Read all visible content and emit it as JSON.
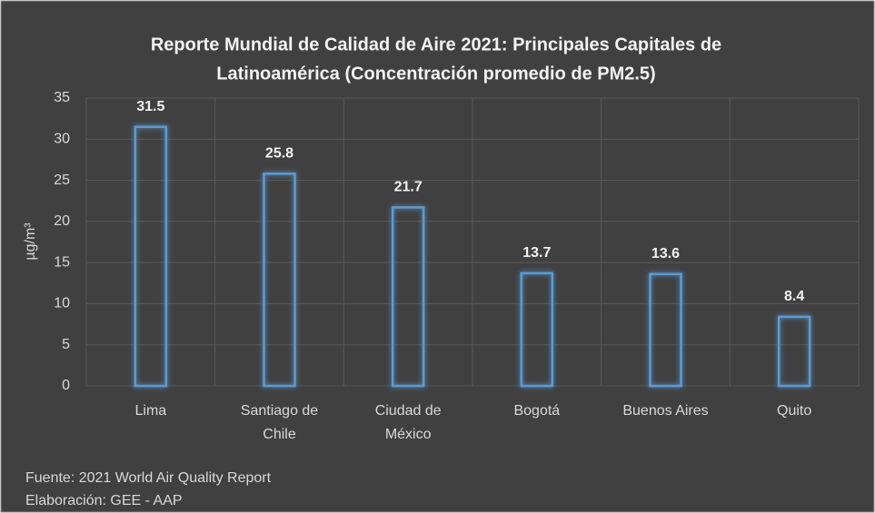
{
  "chart_data": {
    "type": "bar",
    "title": [
      "Reporte Mundial de Calidad de Aire 2021: Principales Capitales de",
      "Latinoamérica (Concentración promedio de PM2.5)"
    ],
    "ylabel": "µg/m³",
    "categories": [
      [
        "Lima"
      ],
      [
        "Santiago de",
        "Chile"
      ],
      [
        "Ciudad de",
        "México"
      ],
      [
        "Bogotá"
      ],
      [
        "Buenos Aires"
      ],
      [
        "Quito"
      ]
    ],
    "values": [
      31.5,
      25.8,
      21.7,
      13.7,
      13.6,
      8.4
    ],
    "color": "#5b9bd5",
    "ylim": [
      0,
      35
    ],
    "yticks": [
      0,
      5,
      10,
      15,
      20,
      25,
      30,
      35
    ],
    "grid": true,
    "notes": [
      "Fuente: 2021 World Air Quality  Report",
      "Elaboración: GEE - AAP"
    ]
  }
}
